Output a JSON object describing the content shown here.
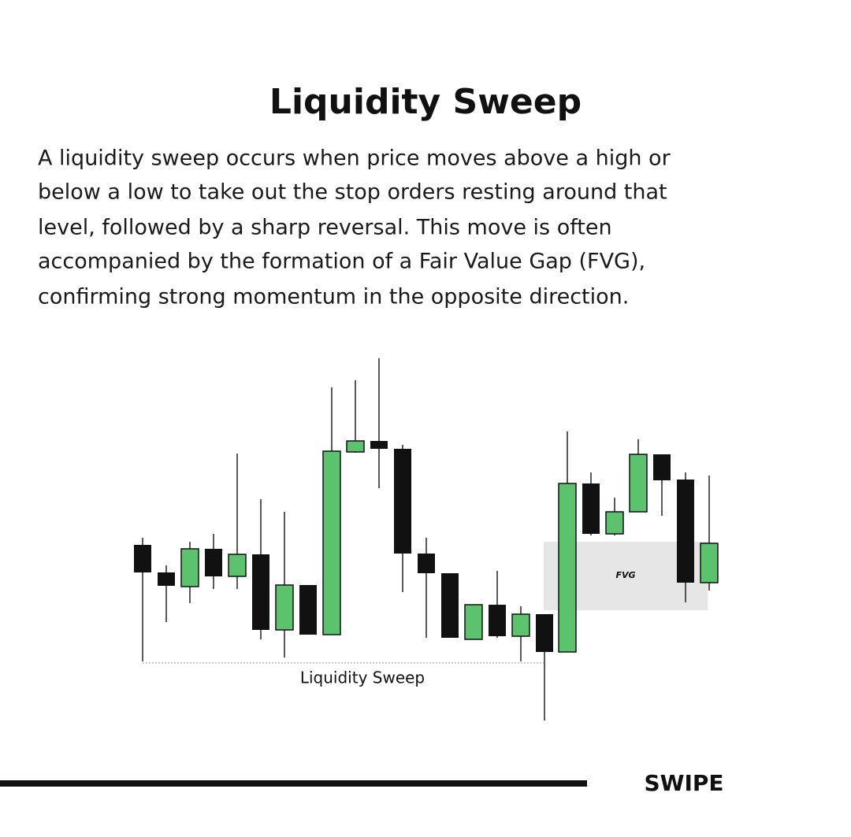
{
  "title": "Liquidity Sweep",
  "paragraph": [
    "A liquidity sweep occurs when price moves above a high or",
    "below a low to take out the stop orders resting around that",
    "level, followed by a sharp reversal. This move is often",
    "accompanied by the formation of a Fair Value Gap (FVG),",
    "confirming strong momentum in the opposite direction."
  ],
  "diagram": {
    "sweep_label": "Liquidity Sweep",
    "fvg_label": "FVG"
  },
  "footer": {
    "swipe": "SWIPE"
  }
}
